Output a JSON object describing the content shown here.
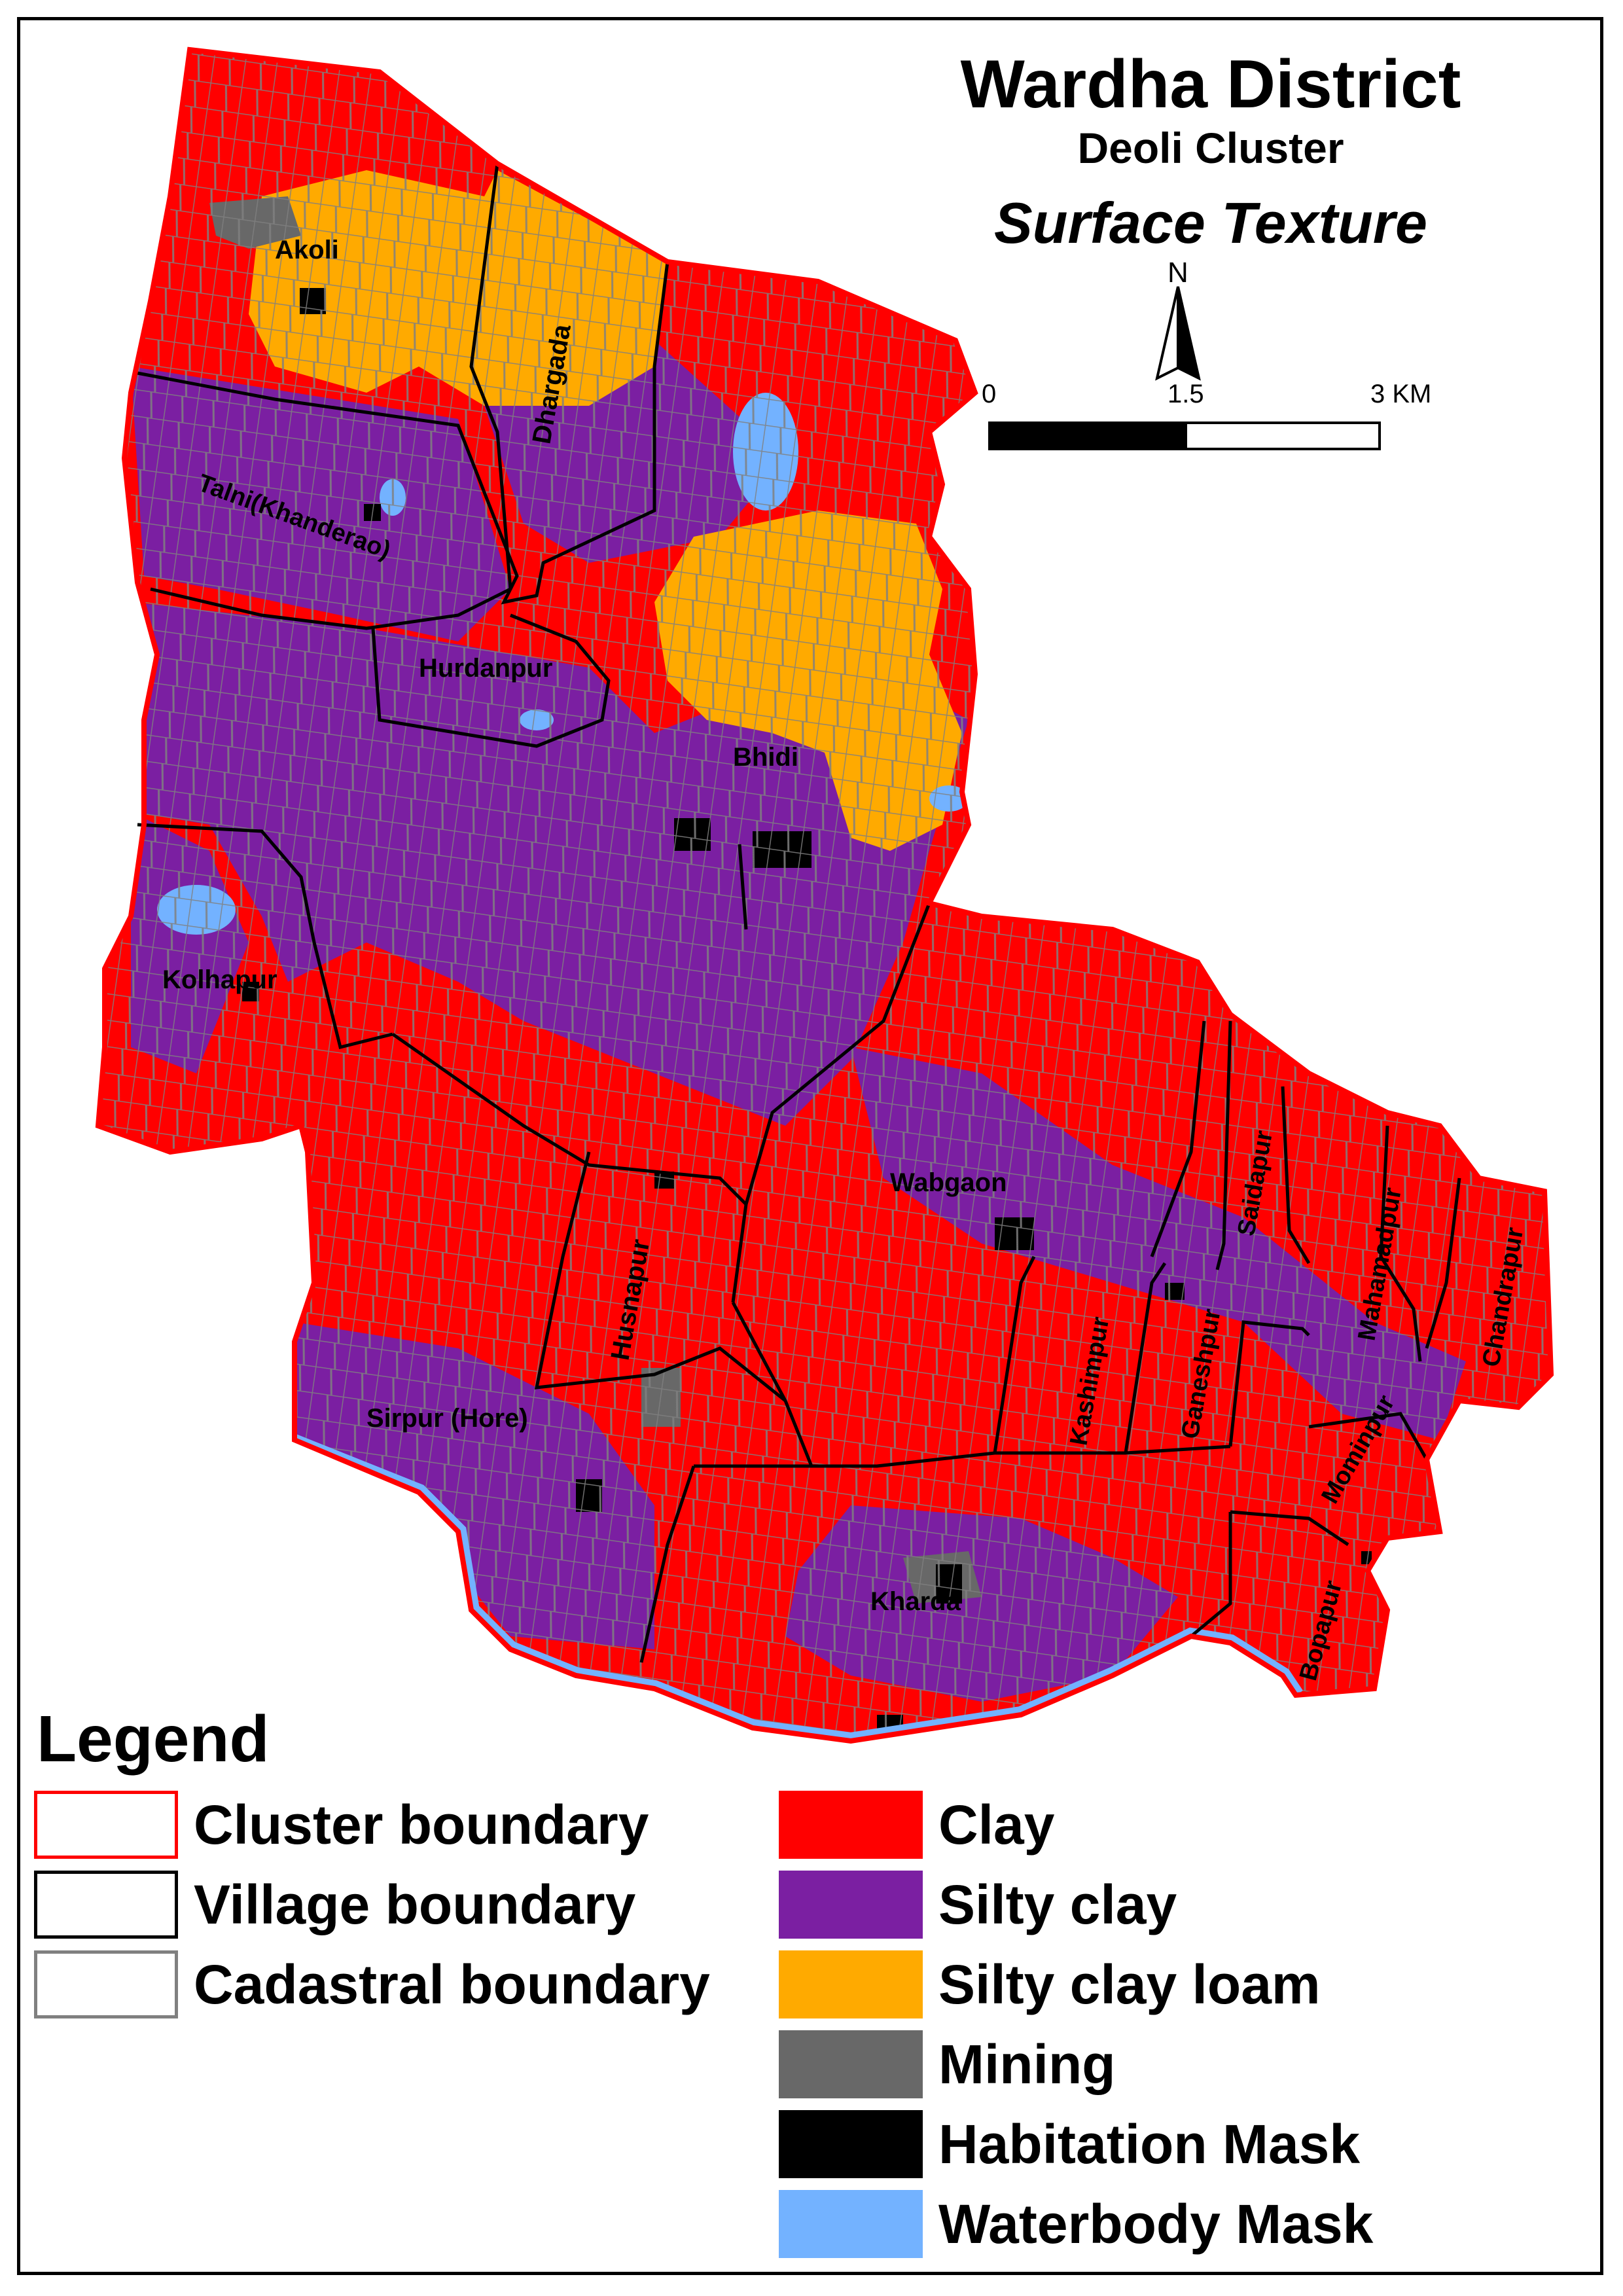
{
  "title": {
    "line1": "Wardha District",
    "line2": "Deoli Cluster",
    "line3": "Surface Texture"
  },
  "north_arrow": {
    "label": "N"
  },
  "scale_bar": {
    "ticks": [
      "0",
      "1.5",
      "3 KM"
    ]
  },
  "villages": [
    "Akoli",
    "Dhargada",
    "Talni(Khanderao)",
    "Hurdanpur",
    "Bhidi",
    "Kolhapur",
    "Wabgaon",
    "Husnapur",
    "Saidapur",
    "Mahamadpur",
    "Chandrapur",
    "Kashimpur",
    "Ganeshpur",
    "Sirpur (Hore)",
    "Mominpur",
    "Kharda",
    "Bopapur"
  ],
  "legend": {
    "title": "Legend",
    "boundaries": [
      {
        "label": "Cluster boundary",
        "color": "#ff0000"
      },
      {
        "label": "Village boundary",
        "color": "#000000"
      },
      {
        "label": "Cadastral boundary",
        "color": "#808080"
      }
    ],
    "classes": [
      {
        "label": "Clay",
        "color": "#ff0000"
      },
      {
        "label": "Silty clay",
        "color": "#7b1fa2"
      },
      {
        "label": "Silty clay loam",
        "color": "#ffaa00"
      },
      {
        "label": "Mining",
        "color": "#686868"
      },
      {
        "label": "Habitation Mask",
        "color": "#000000"
      },
      {
        "label": "Waterbody Mask",
        "color": "#73b2ff"
      }
    ]
  }
}
